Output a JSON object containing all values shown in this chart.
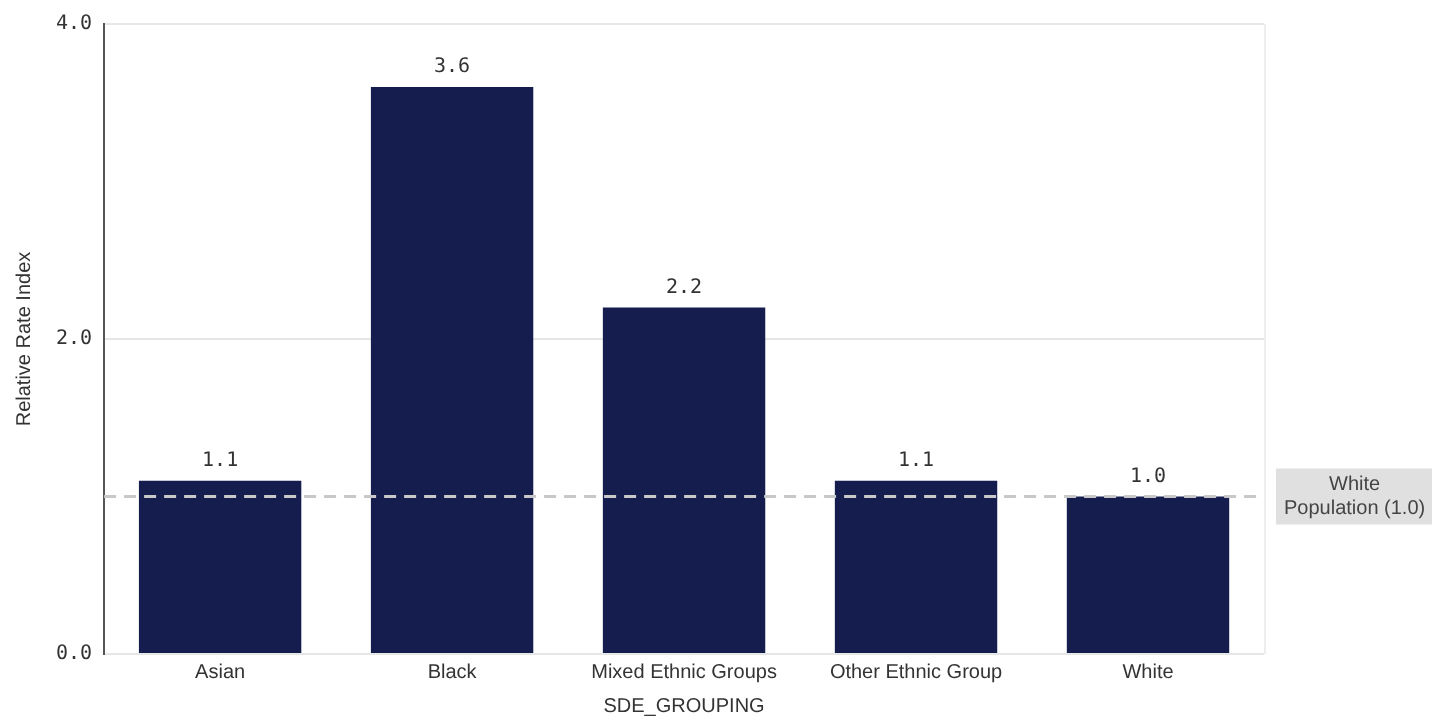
{
  "chart_data": {
    "type": "bar",
    "xlabel": "SDE_GROUPING",
    "ylabel": "Relative Rate Index",
    "categories": [
      "Asian",
      "Black",
      "Mixed Ethnic Groups",
      "Other Ethnic Group",
      "White"
    ],
    "values": [
      1.1,
      3.6,
      2.2,
      1.1,
      1.0
    ],
    "value_labels": [
      "1.1",
      "3.6",
      "2.2",
      "1.1",
      "1.0"
    ],
    "color": "#151c4e",
    "ylim": [
      0,
      4
    ],
    "yticks": [
      {
        "value": 0,
        "label": "0.0"
      },
      {
        "value": 2,
        "label": "2.0"
      },
      {
        "value": 4,
        "label": "4.0"
      }
    ],
    "grid": "y",
    "legend": false,
    "ref_lines": [
      {
        "axis": "y",
        "value": 1,
        "label": "White Population (1.0)",
        "color": "#c8c8c8",
        "line_style": "dashed"
      }
    ]
  }
}
